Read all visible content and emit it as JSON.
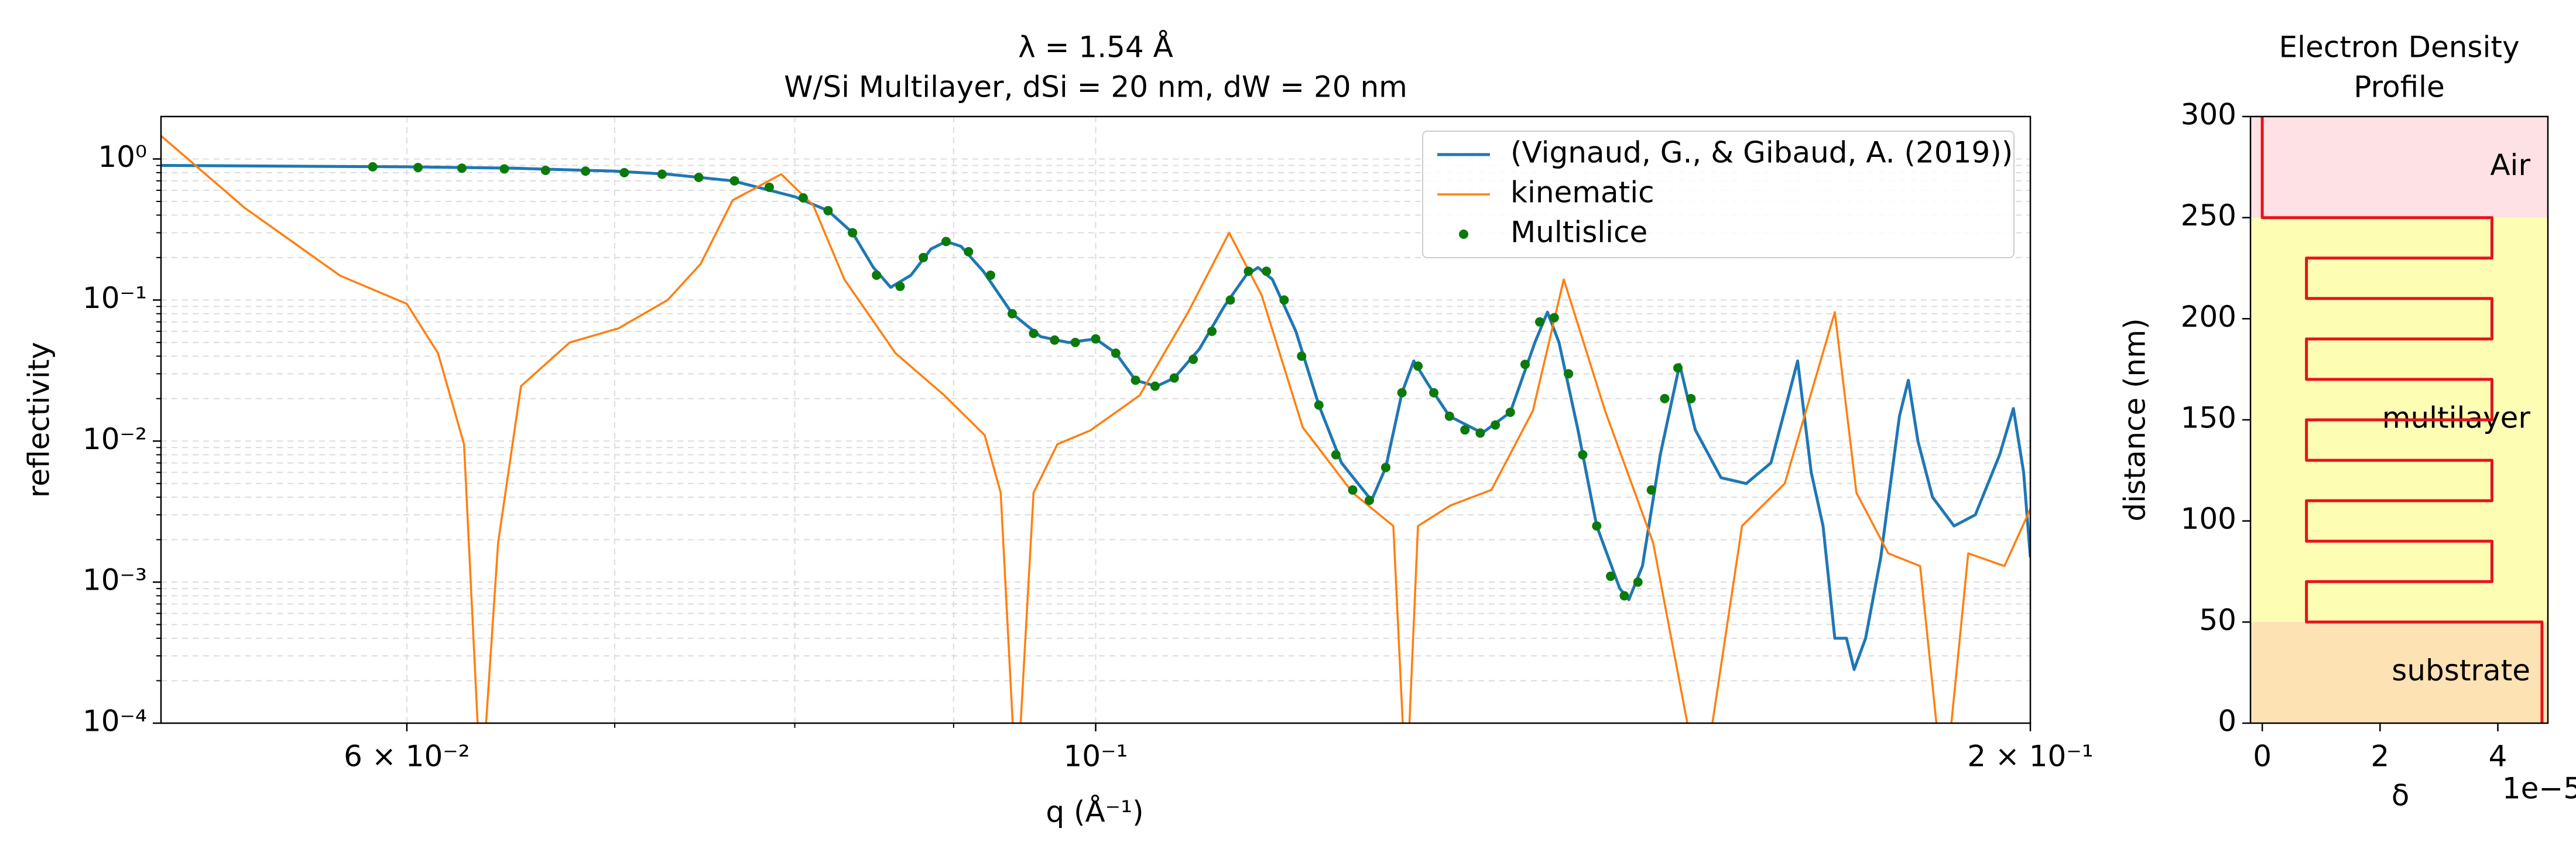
{
  "chart_data": [
    {
      "type": "line",
      "title": [
        "λ = 1.54 Å",
        "W/Si Multilayer, dSi = 20 nm, dW = 20 nm"
      ],
      "x_label": "q (Å⁻¹)",
      "y_label": "reflectivity",
      "xlog": true,
      "ylog": true,
      "grid": true,
      "legend": "upper right",
      "xlim": [
        0.05,
        0.2
      ],
      "ylim": [
        0.0001,
        2
      ],
      "xticks": [
        {
          "value": 0.06,
          "label": "6 × 10⁻²"
        },
        {
          "value": 0.1,
          "label": "10⁻¹"
        },
        {
          "value": 0.2,
          "label": "2 × 10⁻¹"
        }
      ],
      "xminorticks": [
        0.07,
        0.08,
        0.09
      ],
      "yticks": [
        {
          "value": 0.0001,
          "label": "10⁻⁴"
        },
        {
          "value": 0.001,
          "label": "10⁻³"
        },
        {
          "value": 0.01,
          "label": "10⁻²"
        },
        {
          "value": 0.1,
          "label": "10⁻¹"
        },
        {
          "value": 1,
          "label": "10⁰"
        }
      ],
      "yminorticks": [
        0.0002,
        0.0003,
        0.0004,
        0.0005,
        0.0006,
        0.0007,
        0.0008,
        0.0009,
        0.002,
        0.003,
        0.004,
        0.005,
        0.006,
        0.007,
        0.008,
        0.009,
        0.02,
        0.03,
        0.04,
        0.05,
        0.06,
        0.07,
        0.08,
        0.09,
        0.2,
        0.3,
        0.4,
        0.5,
        0.6,
        0.7,
        0.8,
        0.9
      ],
      "series": [
        {
          "name": "(Vignaud, G., & Gibaud, A. (2019))",
          "type": "line",
          "color": "#1f77b4",
          "x": [
            0.05,
            0.06,
            0.065,
            0.07,
            0.0728,
            0.0764,
            0.08,
            0.082,
            0.0835,
            0.0848,
            0.0859,
            0.0872,
            0.0885,
            0.0895,
            0.0905,
            0.092,
            0.094,
            0.096,
            0.098,
            0.1,
            0.1015,
            0.103,
            0.1046,
            0.106,
            0.108,
            0.11,
            0.1118,
            0.1128,
            0.114,
            0.116,
            0.118,
            0.12,
            0.1227,
            0.124,
            0.1255,
            0.1266,
            0.128,
            0.13,
            0.1332,
            0.136,
            0.1385,
            0.1398,
            0.141,
            0.143,
            0.145,
            0.1475,
            0.1485,
            0.15,
            0.152,
            0.1542,
            0.156,
            0.159,
            0.162,
            0.165,
            0.1683,
            0.17,
            0.1715,
            0.173,
            0.1745,
            0.1755,
            0.177,
            0.179,
            0.1815,
            0.1827,
            0.184,
            0.186,
            0.189,
            0.192,
            0.1955,
            0.1975,
            0.199,
            0.2
          ],
          "values": [
            0.9,
            0.88,
            0.86,
            0.82,
            0.78,
            0.7,
            0.54,
            0.43,
            0.3,
            0.17,
            0.123,
            0.15,
            0.23,
            0.26,
            0.24,
            0.16,
            0.08,
            0.055,
            0.05,
            0.053,
            0.042,
            0.027,
            0.0244,
            0.028,
            0.045,
            0.09,
            0.15,
            0.17,
            0.14,
            0.06,
            0.018,
            0.007,
            0.0038,
            0.0065,
            0.022,
            0.037,
            0.025,
            0.015,
            0.0114,
            0.016,
            0.05,
            0.082,
            0.05,
            0.012,
            0.0025,
            0.0009,
            0.00075,
            0.0013,
            0.008,
            0.035,
            0.012,
            0.0055,
            0.005,
            0.007,
            0.037,
            0.006,
            0.0025,
            0.0004,
            0.0004,
            0.00024,
            0.0004,
            0.0015,
            0.015,
            0.027,
            0.01,
            0.004,
            0.0025,
            0.003,
            0.008,
            0.017,
            0.006,
            0.0015
          ]
        },
        {
          "name": "kinematic",
          "type": "line",
          "color": "#ff7f0e",
          "x": [
            0.05,
            0.0532,
            0.0571,
            0.06,
            0.0614,
            0.0626,
            0.0634,
            0.0642,
            0.0653,
            0.0677,
            0.0702,
            0.0728,
            0.0746,
            0.0764,
            0.0792,
            0.0811,
            0.083,
            0.0862,
            0.0894,
            0.0921,
            0.0932,
            0.0943,
            0.0955,
            0.0972,
            0.0996,
            0.1033,
            0.1071,
            0.1104,
            0.1131,
            0.1166,
            0.121,
            0.1247,
            0.1259,
            0.127,
            0.1301,
            0.1341,
            0.1383,
            0.1415,
            0.1459,
            0.1512,
            0.1567,
            0.1615,
            0.1667,
            0.173,
            0.1758,
            0.18,
            0.1843,
            0.1876,
            0.191,
            0.1962,
            0.2
          ],
          "values": [
            1.46,
            0.45,
            0.149,
            0.094,
            0.042,
            0.0095,
            3e-05,
            0.0019,
            0.0245,
            0.05,
            0.063,
            0.1,
            0.18,
            0.51,
            0.78,
            0.47,
            0.14,
            0.042,
            0.021,
            0.011,
            0.0043,
            3e-05,
            0.0043,
            0.0095,
            0.0119,
            0.021,
            0.082,
            0.3,
            0.108,
            0.0125,
            0.0043,
            0.0025,
            3e-05,
            0.0025,
            0.0035,
            0.0045,
            0.0164,
            0.14,
            0.0164,
            0.0019,
            3e-05,
            0.0025,
            0.005,
            0.082,
            0.0043,
            0.0016,
            0.0013,
            3e-05,
            0.0016,
            0.0013,
            0.0033
          ]
        },
        {
          "name": "Multislice",
          "type": "scatter",
          "color": "#0b7a0b",
          "x": [
            0.0585,
            0.0605,
            0.0625,
            0.0645,
            0.0665,
            0.0685,
            0.0705,
            0.0725,
            0.0745,
            0.0765,
            0.0785,
            0.0805,
            0.082,
            0.0835,
            0.085,
            0.0865,
            0.088,
            0.0895,
            0.091,
            0.0925,
            0.094,
            0.0955,
            0.097,
            0.0985,
            0.1,
            0.1015,
            0.103,
            0.1045,
            0.106,
            0.1075,
            0.109,
            0.1105,
            0.112,
            0.1135,
            0.115,
            0.1165,
            0.118,
            0.1195,
            0.121,
            0.1225,
            0.124,
            0.1255,
            0.127,
            0.1285,
            0.13,
            0.1315,
            0.133,
            0.1345,
            0.136,
            0.1375,
            0.139,
            0.1405,
            0.142,
            0.1435,
            0.145,
            0.1465,
            0.148,
            0.1495,
            0.151,
            0.1525,
            0.154,
            0.1555
          ],
          "values": [
            0.88,
            0.87,
            0.86,
            0.85,
            0.83,
            0.82,
            0.8,
            0.78,
            0.74,
            0.7,
            0.63,
            0.53,
            0.43,
            0.3,
            0.15,
            0.125,
            0.2,
            0.26,
            0.22,
            0.15,
            0.08,
            0.058,
            0.052,
            0.05,
            0.053,
            0.042,
            0.027,
            0.0245,
            0.028,
            0.038,
            0.06,
            0.1,
            0.16,
            0.16,
            0.1,
            0.04,
            0.018,
            0.008,
            0.0045,
            0.0038,
            0.0065,
            0.022,
            0.034,
            0.022,
            0.015,
            0.012,
            0.0114,
            0.013,
            0.016,
            0.035,
            0.07,
            0.075,
            0.03,
            0.008,
            0.0025,
            0.0011,
            0.0008,
            0.001,
            0.0045,
            0.02,
            0.033,
            0.02
          ]
        }
      ]
    },
    {
      "type": "line",
      "title": [
        "Electron Density",
        "Profile"
      ],
      "x_label": "δ",
      "x_offset_label": "1e−5",
      "y_label": "distance (nm)",
      "xlog": false,
      "ylog": false,
      "grid": false,
      "xlim": [
        -0.2,
        4.85
      ],
      "ylim": [
        0,
        300
      ],
      "xticks": [
        0,
        2,
        4
      ],
      "yticks": [
        0,
        50,
        100,
        150,
        200,
        250,
        300
      ],
      "regions": [
        {
          "label": "Air",
          "range": [
            250,
            300
          ],
          "color": "#fde1e5"
        },
        {
          "label": "multilayer",
          "range": [
            50,
            250
          ],
          "color": "#fdfdb4"
        },
        {
          "label": "substrate",
          "range": [
            0,
            50
          ],
          "color": "#fde2b4"
        }
      ],
      "series": [
        {
          "type": "line",
          "color": "#e8121b",
          "x": [
            0,
            0,
            3.9,
            3.9,
            0.75,
            0.75,
            3.9,
            3.9,
            0.75,
            0.75,
            3.9,
            3.9,
            0.75,
            0.75,
            3.9,
            3.9,
            0.75,
            0.75,
            3.9,
            3.9,
            0.75,
            0.75,
            4.75,
            4.75
          ],
          "values": [
            300,
            250,
            250,
            230,
            230,
            210,
            210,
            190,
            190,
            170,
            170,
            150,
            150,
            130,
            130,
            110,
            110,
            90,
            90,
            70,
            70,
            50,
            50,
            0
          ]
        }
      ]
    }
  ]
}
